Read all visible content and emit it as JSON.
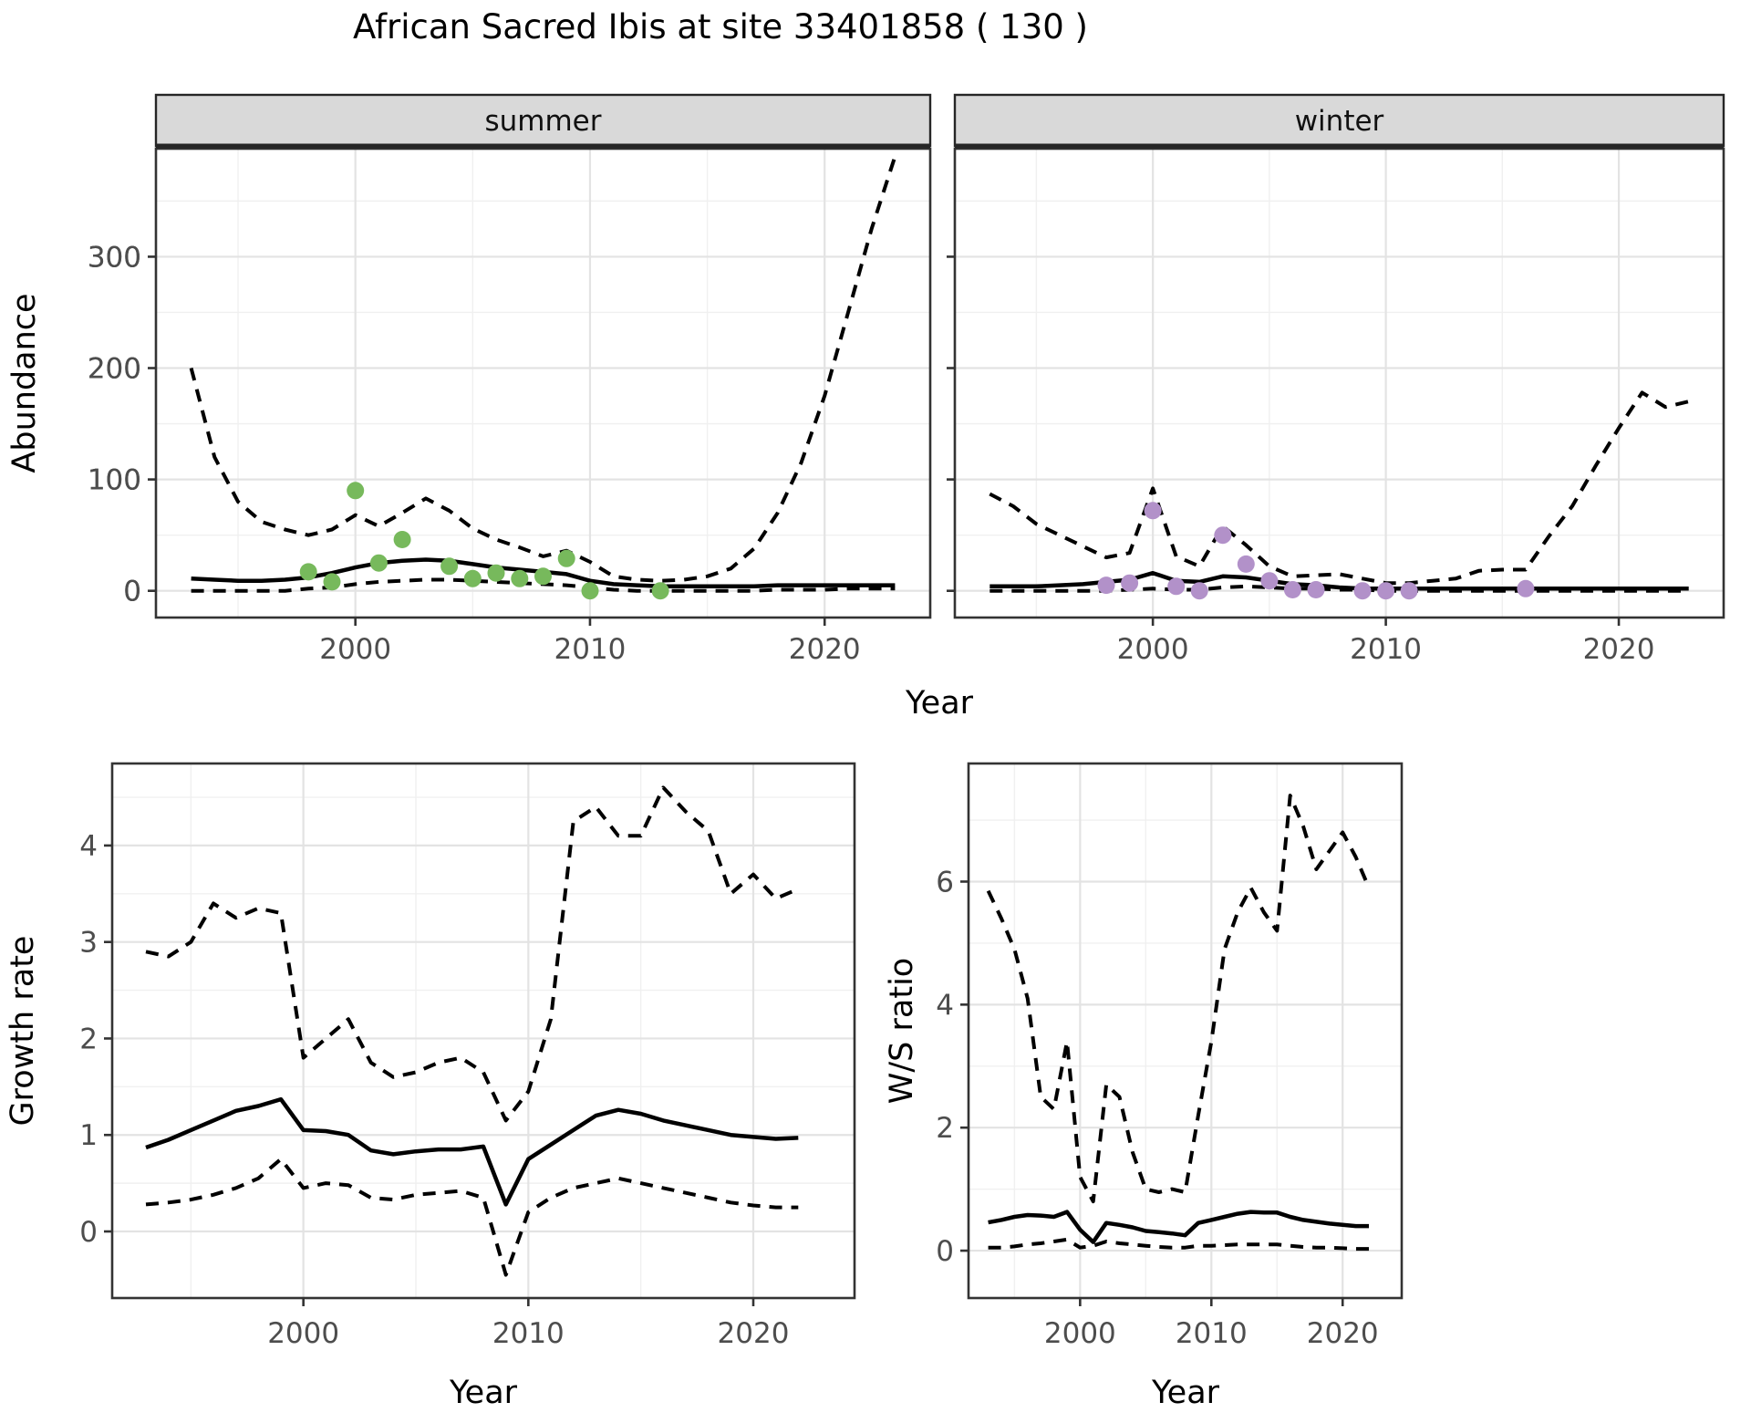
{
  "title": "African Sacred Ibis at site 33401858 ( 130 )",
  "colors": {
    "summer_point": "#77b95c",
    "winter_point": "#b291c9",
    "line": "#000000",
    "strip_fill": "#d9d9d9",
    "strip_border": "#262626",
    "panel_border": "#333333",
    "grid_major": "#e3e3e3",
    "grid_minor": "#f0f0f0",
    "tick_label": "#4d4d4d",
    "axis_title": "#000000"
  },
  "chart_data": [
    {
      "type": "line",
      "facet": "summer",
      "ylabel": "Abundance",
      "xlabel": "Year",
      "x_ticks": [
        2000,
        2010,
        2020
      ],
      "x_minor": [
        1995,
        2005,
        2015
      ],
      "y_ticks": [
        0,
        100,
        200,
        300
      ],
      "y_minor": [
        50,
        150,
        250,
        350
      ],
      "xlim": [
        1991.5,
        2024.5
      ],
      "ylim": [
        -24,
        397
      ],
      "years": [
        1993,
        1994,
        1995,
        1996,
        1997,
        1998,
        1999,
        2000,
        2001,
        2002,
        2003,
        2004,
        2005,
        2006,
        2007,
        2008,
        2009,
        2010,
        2011,
        2012,
        2013,
        2014,
        2015,
        2016,
        2017,
        2018,
        2019,
        2020,
        2021,
        2022,
        2023
      ],
      "series": [
        {
          "name": "fit",
          "style": "solid",
          "values": [
            11,
            10,
            9,
            9,
            10,
            12,
            16,
            21,
            25,
            27,
            28,
            27,
            24,
            21,
            19,
            17,
            15,
            9,
            6,
            5,
            4,
            4,
            4,
            4,
            4,
            5,
            5,
            5,
            5,
            5,
            5
          ]
        },
        {
          "name": "upper_ci",
          "style": "dashed",
          "values": [
            200,
            120,
            80,
            62,
            55,
            50,
            55,
            68,
            58,
            70,
            83,
            72,
            56,
            46,
            39,
            31,
            36,
            26,
            13,
            10,
            9,
            10,
            13,
            20,
            38,
            70,
            115,
            175,
            250,
            325,
            390
          ]
        },
        {
          "name": "lower_ci",
          "style": "dashed",
          "values": [
            0,
            0,
            0,
            0,
            0,
            2,
            3,
            6,
            8,
            9,
            10,
            10,
            9,
            8,
            7,
            6,
            5,
            3,
            1,
            0,
            0,
            0,
            0,
            0,
            0,
            1,
            1,
            1,
            2,
            2,
            2
          ]
        }
      ],
      "points": [
        [
          1998,
          17
        ],
        [
          1999,
          8
        ],
        [
          2000,
          90
        ],
        [
          2001,
          25
        ],
        [
          2002,
          46
        ],
        [
          2004,
          22
        ],
        [
          2005,
          11
        ],
        [
          2006,
          16
        ],
        [
          2007,
          11
        ],
        [
          2008,
          13
        ],
        [
          2009,
          29
        ],
        [
          2010,
          0
        ],
        [
          2013,
          0
        ]
      ]
    },
    {
      "type": "line",
      "facet": "winter",
      "ylabel": "Abundance",
      "xlabel": "Year",
      "x_ticks": [
        2000,
        2010,
        2020
      ],
      "x_minor": [
        1995,
        2005,
        2015
      ],
      "y_ticks": [
        0,
        100,
        200,
        300
      ],
      "y_minor": [
        50,
        150,
        250,
        350
      ],
      "xlim": [
        1991.5,
        2024.5
      ],
      "ylim": [
        -24,
        397
      ],
      "years": [
        1993,
        1994,
        1995,
        1996,
        1997,
        1998,
        1999,
        2000,
        2001,
        2002,
        2003,
        2004,
        2005,
        2006,
        2007,
        2008,
        2009,
        2010,
        2011,
        2012,
        2013,
        2014,
        2015,
        2016,
        2017,
        2018,
        2019,
        2020,
        2021,
        2022,
        2023
      ],
      "series": [
        {
          "name": "fit",
          "style": "solid",
          "values": [
            4,
            4,
            4,
            5,
            6,
            8,
            10,
            16,
            9,
            8,
            13,
            12,
            9,
            6,
            5,
            3,
            2,
            2,
            2,
            2,
            2,
            2,
            2,
            2,
            2,
            2,
            2,
            2,
            2,
            2,
            2
          ]
        },
        {
          "name": "upper_ci",
          "style": "dashed",
          "values": [
            87,
            76,
            60,
            50,
            40,
            30,
            34,
            92,
            31,
            22,
            58,
            41,
            22,
            13,
            14,
            15,
            11,
            7,
            7,
            9,
            11,
            18,
            19,
            19,
            49,
            76,
            112,
            146,
            178,
            165,
            170
          ]
        },
        {
          "name": "lower_ci",
          "style": "dashed",
          "values": [
            0,
            0,
            0,
            0,
            0,
            0,
            1,
            2,
            1,
            1,
            3,
            4,
            3,
            2,
            2,
            1,
            1,
            0,
            0,
            0,
            0,
            0,
            0,
            0,
            0,
            0,
            0,
            0,
            0,
            0,
            0
          ]
        }
      ],
      "points": [
        [
          1998,
          5
        ],
        [
          1999,
          7
        ],
        [
          2000,
          72
        ],
        [
          2001,
          4
        ],
        [
          2002,
          0
        ],
        [
          2003,
          50
        ],
        [
          2004,
          24
        ],
        [
          2005,
          9
        ],
        [
          2006,
          1
        ],
        [
          2007,
          1
        ],
        [
          2009,
          0
        ],
        [
          2010,
          0
        ],
        [
          2011,
          0
        ],
        [
          2016,
          2
        ]
      ]
    },
    {
      "type": "line",
      "facet": "",
      "ylabel": "Growth rate",
      "xlabel": "Year",
      "x_ticks": [
        2000,
        2010,
        2020
      ],
      "x_minor": [
        1995,
        2005,
        2015
      ],
      "y_ticks": [
        0,
        1,
        2,
        3,
        4
      ],
      "y_minor": [
        0.5,
        1.5,
        2.5,
        3.5,
        4.5
      ],
      "xlim": [
        1991.5,
        2024.5
      ],
      "ylim": [
        -0.69,
        4.85
      ],
      "years": [
        1993,
        1994,
        1995,
        1996,
        1997,
        1998,
        1999,
        2000,
        2001,
        2002,
        2003,
        2004,
        2005,
        2006,
        2007,
        2008,
        2009,
        2010,
        2011,
        2012,
        2013,
        2014,
        2015,
        2016,
        2017,
        2018,
        2019,
        2020,
        2021,
        2022
      ],
      "series": [
        {
          "name": "fit",
          "style": "solid",
          "values": [
            0.87,
            0.95,
            1.05,
            1.15,
            1.25,
            1.3,
            1.37,
            1.05,
            1.04,
            1.0,
            0.84,
            0.8,
            0.83,
            0.85,
            0.85,
            0.88,
            0.28,
            0.75,
            0.9,
            1.05,
            1.2,
            1.26,
            1.22,
            1.15,
            1.1,
            1.05,
            1.0,
            0.98,
            0.96,
            0.97
          ]
        },
        {
          "name": "upper_ci",
          "style": "dashed",
          "values": [
            2.9,
            2.85,
            3.0,
            3.4,
            3.25,
            3.35,
            3.3,
            1.8,
            2.0,
            2.2,
            1.75,
            1.6,
            1.65,
            1.75,
            1.8,
            1.65,
            1.15,
            1.45,
            2.2,
            4.25,
            4.4,
            4.1,
            4.1,
            4.6,
            4.35,
            4.15,
            3.5,
            3.7,
            3.45,
            3.55
          ]
        },
        {
          "name": "lower_ci",
          "style": "dashed",
          "values": [
            0.28,
            0.3,
            0.33,
            0.38,
            0.45,
            0.55,
            0.75,
            0.45,
            0.5,
            0.48,
            0.35,
            0.33,
            0.38,
            0.4,
            0.42,
            0.35,
            -0.45,
            0.2,
            0.35,
            0.45,
            0.5,
            0.55,
            0.5,
            0.45,
            0.4,
            0.35,
            0.3,
            0.27,
            0.25,
            0.25
          ]
        }
      ],
      "points": []
    },
    {
      "type": "line",
      "facet": "",
      "ylabel": "W/S ratio",
      "xlabel": "Year",
      "x_ticks": [
        2000,
        2010,
        2020
      ],
      "x_minor": [
        1995,
        2005,
        2015
      ],
      "y_ticks": [
        0,
        2,
        4,
        6
      ],
      "y_minor": [
        1,
        3,
        5,
        7
      ],
      "xlim": [
        1991.5,
        2024.5
      ],
      "ylim": [
        -0.77,
        7.92
      ],
      "years": [
        1993,
        1994,
        1995,
        1996,
        1997,
        1998,
        1999,
        2000,
        2001,
        2002,
        2003,
        2004,
        2005,
        2006,
        2007,
        2008,
        2009,
        2010,
        2011,
        2012,
        2013,
        2014,
        2015,
        2016,
        2017,
        2018,
        2019,
        2020,
        2021,
        2022
      ],
      "series": [
        {
          "name": "fit",
          "style": "solid",
          "values": [
            0.46,
            0.5,
            0.55,
            0.58,
            0.57,
            0.55,
            0.63,
            0.34,
            0.14,
            0.45,
            0.42,
            0.38,
            0.32,
            0.3,
            0.28,
            0.25,
            0.45,
            0.5,
            0.55,
            0.6,
            0.63,
            0.62,
            0.62,
            0.55,
            0.5,
            0.47,
            0.44,
            0.42,
            0.4,
            0.4
          ]
        },
        {
          "name": "upper_ci",
          "style": "dashed",
          "values": [
            5.85,
            5.4,
            4.9,
            4.1,
            2.5,
            2.3,
            3.4,
            1.2,
            0.8,
            2.7,
            2.5,
            1.6,
            1.0,
            0.95,
            1.0,
            0.95,
            2.2,
            3.4,
            4.9,
            5.5,
            5.9,
            5.5,
            5.2,
            7.4,
            6.9,
            6.2,
            6.5,
            6.8,
            6.4,
            5.9
          ]
        },
        {
          "name": "lower_ci",
          "style": "dashed",
          "values": [
            0.05,
            0.05,
            0.07,
            0.1,
            0.12,
            0.15,
            0.18,
            0.05,
            0.08,
            0.15,
            0.12,
            0.1,
            0.08,
            0.06,
            0.05,
            0.05,
            0.08,
            0.08,
            0.09,
            0.1,
            0.1,
            0.1,
            0.1,
            0.08,
            0.06,
            0.05,
            0.05,
            0.04,
            0.03,
            0.03
          ]
        }
      ],
      "points": []
    }
  ]
}
